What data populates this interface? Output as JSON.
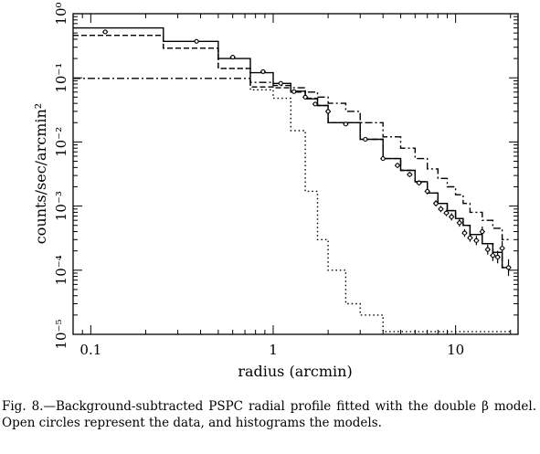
{
  "chart_data": {
    "type": "line",
    "xlabel": "radius (arcmin)",
    "ylabel": "counts/sec/arcmin²",
    "x_scale": "log",
    "y_scale": "log",
    "xlim": [
      0.08,
      22
    ],
    "ylim": [
      1e-05,
      1
    ],
    "x_ticks": [
      {
        "value": 0.1,
        "label": "0.1"
      },
      {
        "value": 1,
        "label": "1"
      },
      {
        "value": 10,
        "label": "10"
      }
    ],
    "y_ticks": [
      {
        "value": 1e-05,
        "label": "10⁻⁵"
      },
      {
        "value": 0.0001,
        "label": "10⁻⁴"
      },
      {
        "value": 0.001,
        "label": "10⁻³"
      },
      {
        "value": 0.01,
        "label": "10⁻²"
      },
      {
        "value": 0.1,
        "label": "10⁻¹"
      },
      {
        "value": 1,
        "label": "10⁰"
      }
    ],
    "grid": false,
    "legend": "none",
    "data_points": {
      "x": [
        0.12,
        0.38,
        0.6,
        0.88,
        1.1,
        1.3,
        1.5,
        1.7,
        2.0,
        2.5,
        3.2,
        4.0,
        4.8,
        5.6,
        6.3,
        7.0,
        7.8,
        8.3,
        8.9,
        9.5,
        10.5,
        11.2,
        12.0,
        13.0,
        14.0,
        15.0,
        16.0,
        17.0,
        18.0,
        19.5
      ],
      "y": [
        0.52,
        0.37,
        0.21,
        0.125,
        0.082,
        0.061,
        0.05,
        0.039,
        0.03,
        0.019,
        0.011,
        0.0055,
        0.0043,
        0.0031,
        0.0023,
        0.0017,
        0.0011,
        0.0009,
        0.00078,
        0.00068,
        0.00055,
        0.00038,
        0.00032,
        0.00029,
        0.0004,
        0.00021,
        0.00017,
        0.00016,
        0.00022,
        0.00011
      ],
      "yerr_factor": [
        1.05,
        1.06,
        1.08,
        1.08,
        1.06,
        1.06,
        1.06,
        1.06,
        1.06,
        1.06,
        1.08,
        1.08,
        1.1,
        1.1,
        1.1,
        1.12,
        1.12,
        1.12,
        1.12,
        1.14,
        1.15,
        1.15,
        1.15,
        1.18,
        1.2,
        1.2,
        1.22,
        1.25,
        1.3,
        1.35
      ]
    },
    "bin_edges": [
      0.08,
      0.25,
      0.5,
      0.75,
      1.0,
      1.25,
      1.5,
      1.75,
      2.0,
      2.5,
      3.0,
      4.0,
      5.0,
      6.0,
      7.0,
      8.0,
      9.0,
      10.0,
      11.0,
      12.0,
      14.0,
      16.0,
      18.0,
      20.0
    ],
    "models": [
      {
        "style": "solid",
        "values": [
          0.6,
          0.37,
          0.2,
          0.12,
          0.082,
          0.062,
          0.047,
          0.037,
          0.02,
          0.02,
          0.011,
          0.0055,
          0.0036,
          0.0024,
          0.0016,
          0.0011,
          0.00085,
          0.00064,
          0.0005,
          0.00036,
          0.00026,
          0.00019,
          0.00011
        ]
      },
      {
        "style": "dashed",
        "values": [
          0.46,
          0.29,
          0.14,
          0.072,
          0.07,
          0.06,
          0.048,
          0.037,
          0.02,
          0.02,
          0.011,
          0.0055,
          0.0036,
          0.0024,
          0.0016,
          0.0011,
          0.00085,
          0.00064,
          0.0005,
          0.00036,
          0.00026,
          0.00019,
          0.00011
        ]
      },
      {
        "style": "dotted",
        "values": [
          0.46,
          0.29,
          0.14,
          0.065,
          0.048,
          0.015,
          0.0017,
          0.0003,
          0.0001,
          3e-05,
          2e-05,
          1.1e-05,
          1.1e-05,
          1.1e-05,
          1.1e-05,
          1.1e-05,
          1.1e-05,
          1.1e-05,
          1.1e-05,
          1.1e-05,
          1.1e-05,
          1.1e-05,
          1.1e-05
        ]
      },
      {
        "style": "dash-dot",
        "values": [
          0.098,
          0.098,
          0.098,
          0.085,
          0.076,
          0.07,
          0.06,
          0.05,
          0.04,
          0.03,
          0.02,
          0.012,
          0.008,
          0.0055,
          0.0038,
          0.0027,
          0.002,
          0.0015,
          0.0011,
          0.0008,
          0.0006,
          0.00045,
          0.0003
        ]
      }
    ]
  },
  "caption": {
    "text": "Fig. 8.—Background-subtracted PSPC radial profile fitted with the double β model. Open circles represent the data, and histograms the models."
  }
}
